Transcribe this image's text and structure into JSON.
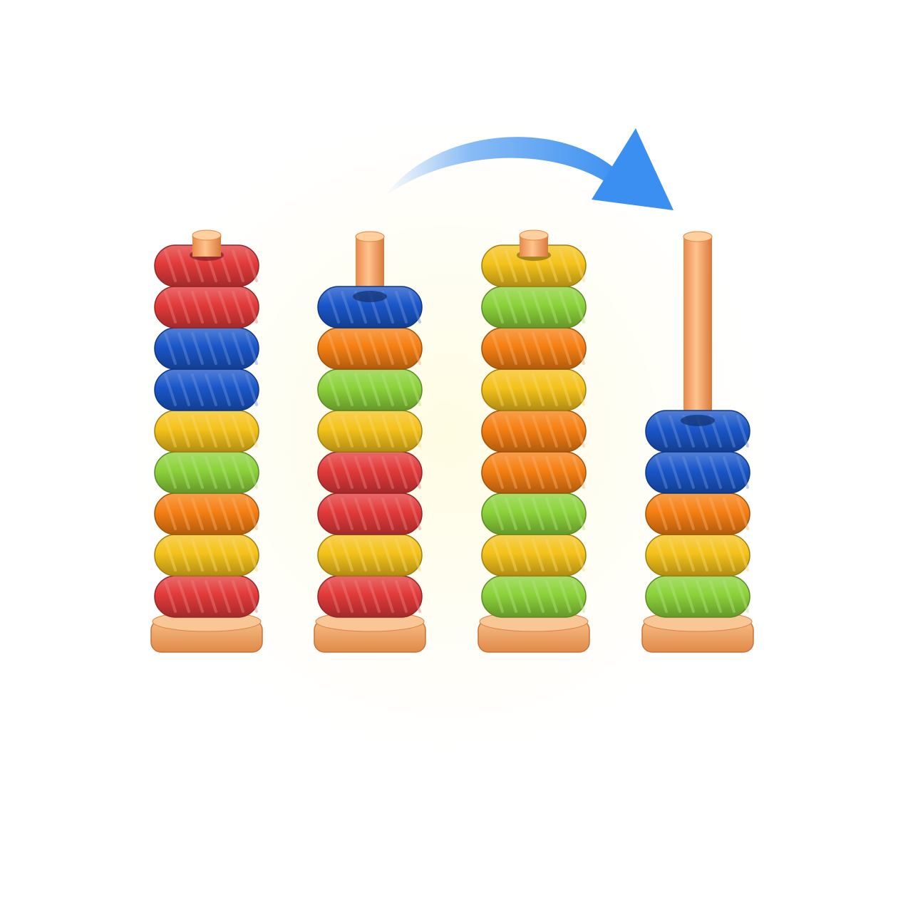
{
  "colors": {
    "red": "#e23a3a",
    "blue": "#1a56c8",
    "yellow": "#f4c21a",
    "green": "#8cd23a",
    "orange": "#f57f12",
    "wood": "#f2a86a",
    "arrow": "#3a8ff0"
  },
  "move": {
    "from_peg": 2,
    "to_peg": 4,
    "icon": "curved-arrow-icon"
  },
  "pegs": [
    {
      "id": 1,
      "rings_top_to_bottom": [
        "red",
        "red",
        "blue",
        "blue",
        "yellow",
        "green",
        "orange",
        "yellow",
        "red"
      ]
    },
    {
      "id": 2,
      "rings_top_to_bottom": [
        "blue",
        "orange",
        "green",
        "yellow",
        "red",
        "red",
        "yellow",
        "red"
      ]
    },
    {
      "id": 3,
      "rings_top_to_bottom": [
        "yellow",
        "green",
        "orange",
        "yellow",
        "orange",
        "orange",
        "green",
        "yellow",
        "green"
      ]
    },
    {
      "id": 4,
      "rings_top_to_bottom": [
        "blue",
        "blue",
        "orange",
        "yellow",
        "green"
      ]
    }
  ]
}
